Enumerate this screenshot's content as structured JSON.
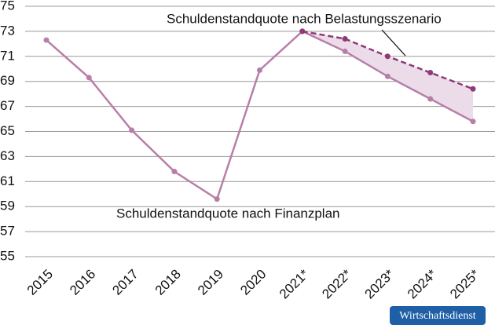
{
  "chart_data": {
    "type": "line",
    "categories": [
      "2015",
      "2016",
      "2017",
      "2018",
      "2019",
      "2020",
      "2021*",
      "2022*",
      "2023*",
      "2024*",
      "2025*"
    ],
    "series": [
      {
        "name": "Schuldenstandquote nach Finanzplan",
        "color": "#b77fa8",
        "dashed": false,
        "values": [
          72.3,
          69.3,
          65.1,
          61.8,
          59.6,
          69.9,
          73.0,
          71.4,
          69.4,
          67.6,
          65.8
        ]
      },
      {
        "name": "Schuldenstandquote nach Belastungsszenario",
        "color": "#8e3a78",
        "dashed": true,
        "values": [
          null,
          null,
          null,
          null,
          null,
          null,
          73.0,
          72.4,
          71.0,
          69.7,
          68.4
        ]
      }
    ],
    "ylim": [
      55,
      75
    ],
    "yticks": [
      55,
      57,
      59,
      61,
      63,
      65,
      67,
      69,
      71,
      73,
      75
    ],
    "grid": true,
    "fill_between": "#ecdcea",
    "source": "Wirtschaftsdienst"
  }
}
